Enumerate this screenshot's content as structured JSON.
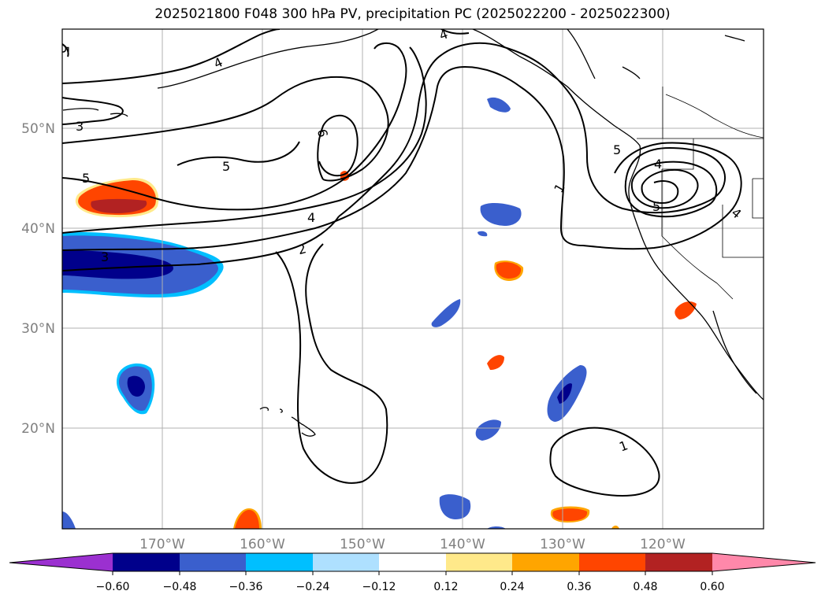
{
  "title": "2025021800 F048 300 hPa PV, precipitation PC (2025022200 - 2025022300)",
  "map": {
    "lon_labels": [
      "170°W",
      "160°W",
      "150°W",
      "140°W",
      "130°W",
      "120°W"
    ],
    "lat_labels": [
      "50°N",
      "40°N",
      "30°N",
      "20°N"
    ],
    "pv_contour_labels": [
      "5",
      "4",
      "3",
      "5",
      "6",
      "5",
      "4",
      "2",
      "3",
      "4",
      "1",
      "5",
      "4",
      "5",
      "4",
      "1"
    ]
  },
  "colorbar": {
    "ticks": [
      "−0.60",
      "−0.48",
      "−0.36",
      "−0.24",
      "−0.12",
      "0.12",
      "0.24",
      "0.36",
      "0.48",
      "0.60"
    ],
    "colors": [
      "#9b30d0",
      "#00008b",
      "#3a5fcd",
      "#00bfff",
      "#aee0ff",
      "#ffffff",
      "#ffe98a",
      "#ffa500",
      "#ff4500",
      "#b22222",
      "#ff88aa"
    ]
  }
}
